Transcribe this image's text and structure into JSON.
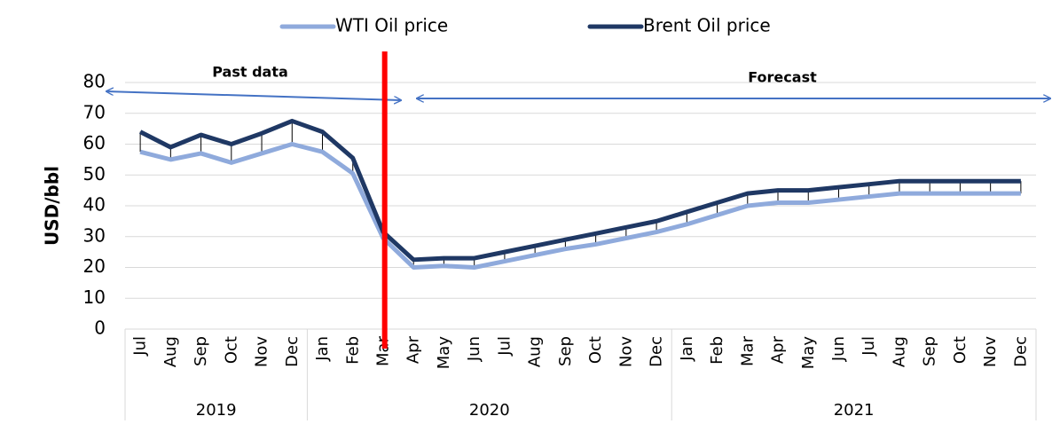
{
  "chart_data": {
    "type": "line",
    "y_label": "USD/bbl",
    "annotations": [
      "Past data",
      "Forecast"
    ],
    "category_groups": [
      {
        "label": "2019",
        "categories": [
          "Jul",
          "Aug",
          "Sep",
          "Oct",
          "Nov",
          "Dec"
        ]
      },
      {
        "label": "2020",
        "categories": [
          "Jan",
          "Feb",
          "Mar",
          "Apr",
          "May",
          "Jun",
          "Jul",
          "Aug",
          "Sep",
          "Oct",
          "Nov",
          "Dec"
        ]
      },
      {
        "label": "2021",
        "categories": [
          "Jan",
          "Feb",
          "Mar",
          "Apr",
          "May",
          "Jun",
          "Jul",
          "Aug",
          "Sep",
          "Oct",
          "Nov",
          "Dec"
        ]
      }
    ],
    "series": [
      {
        "name": "WTI Oil price",
        "color": "#8faadc",
        "values": [
          57.5,
          55,
          57,
          54,
          57,
          60,
          57.5,
          50.5,
          29.5,
          20,
          20.5,
          20,
          22,
          24,
          26,
          27.5,
          29.5,
          31.5,
          34,
          37,
          40,
          41,
          41,
          42,
          43,
          44,
          44,
          44,
          44,
          44
        ]
      },
      {
        "name": "Brent Oil price",
        "color": "#1f3864",
        "values": [
          64,
          59,
          63,
          60,
          63.5,
          67.5,
          64,
          55.5,
          31.5,
          22.5,
          23,
          23,
          25,
          27,
          29,
          31,
          33,
          35,
          38,
          41,
          44,
          45,
          45,
          46,
          47,
          48,
          48,
          48,
          48,
          48
        ]
      }
    ],
    "ylim": [
      0,
      80
    ],
    "yticks": [
      0,
      10,
      20,
      30,
      40,
      50,
      60,
      70,
      80
    ],
    "grid": true,
    "legend": "top"
  }
}
